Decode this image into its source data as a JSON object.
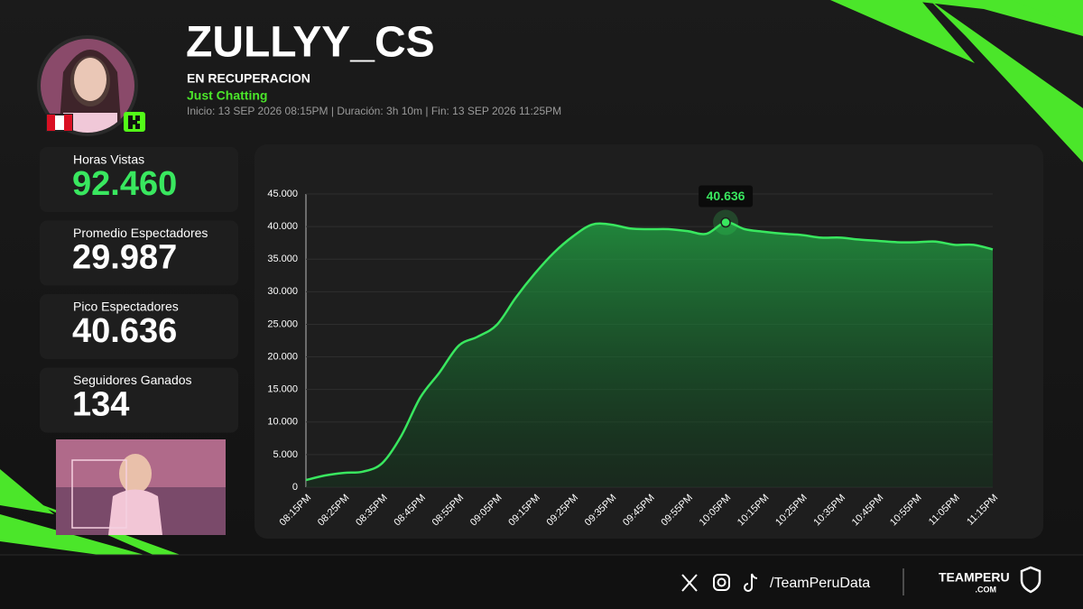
{
  "header": {
    "title": "ZULLYY_CS",
    "status": "EN RECUPERACION",
    "game": "Just Chatting",
    "info": "Inicio: 13 SEP 2026 08:15PM  |  Duración: 3h 10m  |  Fin: 13 SEP 2026 11:25PM"
  },
  "stats": [
    {
      "label": "Horas Vistas",
      "value": "92.460"
    },
    {
      "label": "Promedio Espectadores",
      "value": "29.987"
    },
    {
      "label": "Pico Espectadores",
      "value": "40.636"
    },
    {
      "label": "Seguidores Ganados",
      "value": "134"
    }
  ],
  "footer": {
    "handle": "/TeamPeruData",
    "brand": "TEAMPERU",
    "brand_sub": ".COM"
  },
  "chart_data": {
    "type": "area",
    "categories": [
      "08:15PM",
      null,
      "08:25PM",
      null,
      "08:35PM",
      null,
      "08:45PM",
      null,
      "08:55PM",
      null,
      "09:05PM",
      null,
      "09:15PM",
      null,
      "09:25PM",
      null,
      "09:35PM",
      null,
      "09:45PM",
      null,
      "09:55PM",
      null,
      "10:05PM",
      null,
      "10:15PM",
      null,
      "10:25PM",
      null,
      "10:35PM",
      null,
      "10:45PM",
      null,
      "10:55PM",
      null,
      "11:05PM",
      null,
      "11:15PM"
    ],
    "values": [
      1100,
      1800,
      2200,
      2400,
      3700,
      7900,
      13800,
      17600,
      21700,
      23100,
      24900,
      29100,
      32800,
      36000,
      38500,
      40300,
      40300,
      39700,
      39600,
      39600,
      39300,
      38900,
      40636,
      39600,
      39200,
      38900,
      38700,
      38300,
      38300,
      38000,
      37800,
      37600,
      37600,
      37700,
      37200,
      37200,
      36500
    ],
    "value_labels": [
      null,
      null,
      null,
      null,
      null,
      null,
      null,
      null,
      null,
      null,
      null,
      null,
      null,
      null,
      null,
      null,
      null,
      null,
      null,
      null,
      null,
      null,
      "40.636",
      null,
      null,
      null,
      null,
      null,
      null,
      null,
      null,
      null,
      null,
      null,
      null,
      null,
      null
    ],
    "color": "#39e75f",
    "ylim": [
      0,
      45000
    ],
    "yticks": [
      0,
      {
        "value": 5000,
        "label": "5.000"
      },
      {
        "value": 10000,
        "label": "10.000"
      },
      {
        "value": 15000,
        "label": "15.000"
      },
      {
        "value": 20000,
        "label": "20.000"
      },
      {
        "value": 25000,
        "label": "25.000"
      },
      {
        "value": 30000,
        "label": "30.000"
      },
      {
        "value": 35000,
        "label": "35.000"
      },
      {
        "value": 40000,
        "label": "40.000"
      },
      {
        "value": 45000,
        "label": "45.000"
      }
    ],
    "grid": true
  }
}
